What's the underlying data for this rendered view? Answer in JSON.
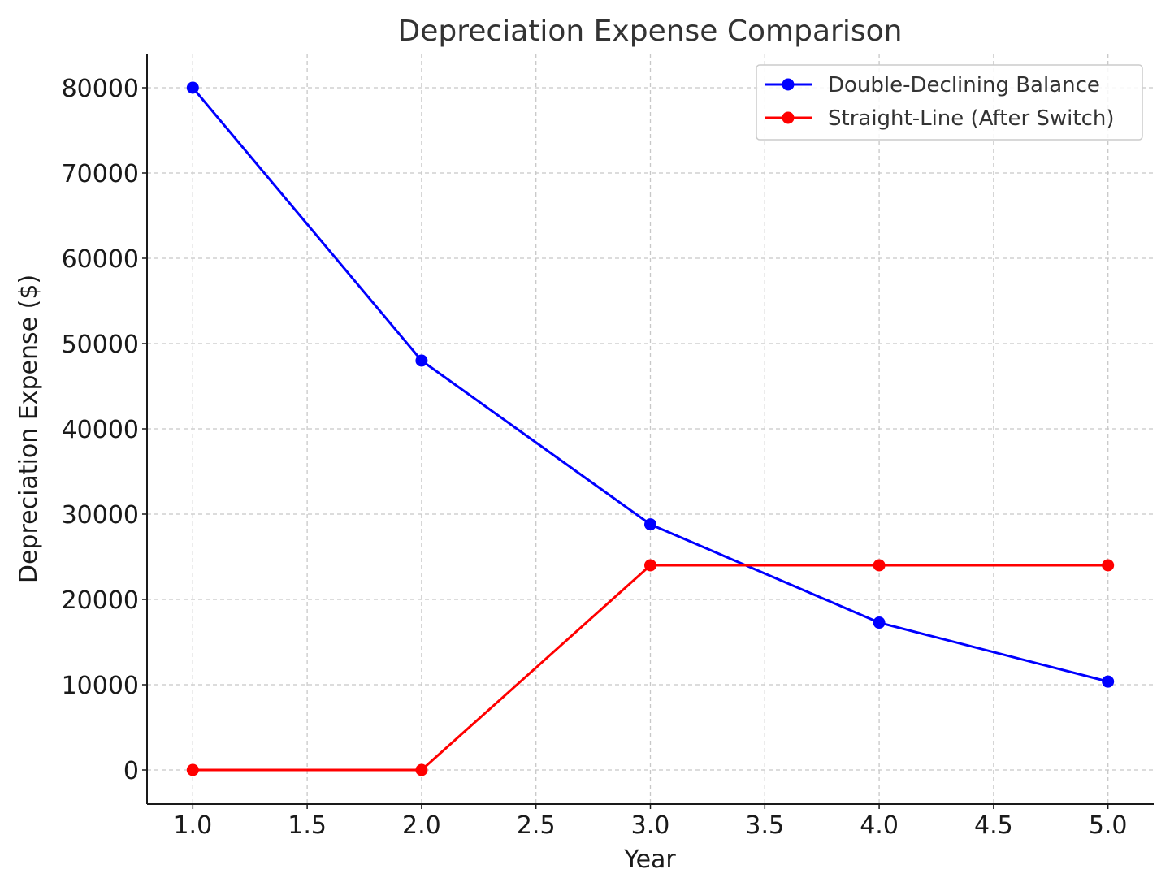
{
  "chart_data": {
    "type": "line",
    "title": "Depreciation Expense Comparison",
    "xlabel": "Year",
    "ylabel": "Depreciation Expense ($)",
    "x": [
      1,
      2,
      3,
      4,
      5
    ],
    "xlim": [
      0.8,
      5.2
    ],
    "ylim": [
      -4000,
      84000
    ],
    "xticks": [
      1.0,
      1.5,
      2.0,
      2.5,
      3.0,
      3.5,
      4.0,
      4.5,
      5.0
    ],
    "xtick_labels": [
      "1.0",
      "1.5",
      "2.0",
      "2.5",
      "3.0",
      "3.5",
      "4.0",
      "4.5",
      "5.0"
    ],
    "yticks": [
      0,
      10000,
      20000,
      30000,
      40000,
      50000,
      60000,
      70000,
      80000
    ],
    "ytick_labels": [
      "0",
      "10000",
      "20000",
      "30000",
      "40000",
      "50000",
      "60000",
      "70000",
      "80000"
    ],
    "grid": true,
    "legend_position": "top-right",
    "series": [
      {
        "name": "Double-Declining Balance",
        "color": "#0000ff",
        "marker": "circle",
        "values": [
          80000,
          48000,
          28800,
          17280,
          10368
        ]
      },
      {
        "name": "Straight-Line (After Switch)",
        "color": "#ff0000",
        "marker": "circle",
        "values": [
          0,
          0,
          24000,
          24000,
          24000
        ]
      }
    ]
  }
}
